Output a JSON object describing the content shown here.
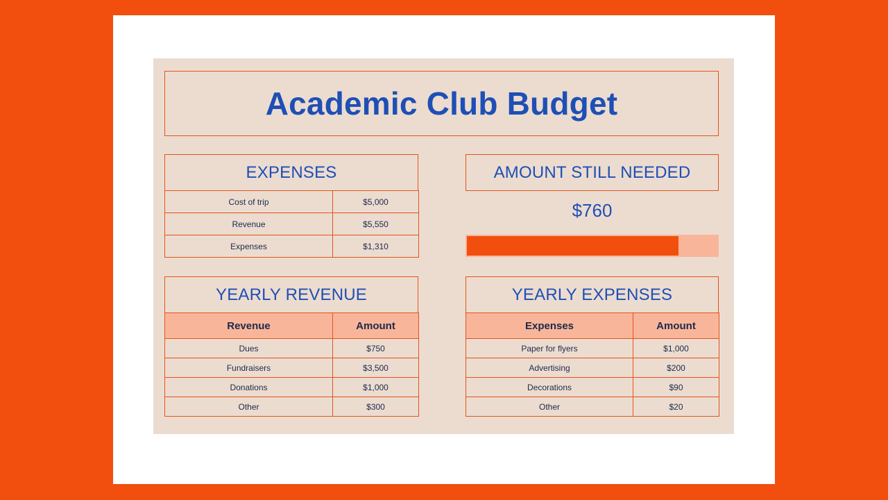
{
  "title": "Academic Club Budget",
  "expenses_summary": {
    "heading": "EXPENSES",
    "rows": [
      {
        "label": "Cost of trip",
        "value": "$5,000"
      },
      {
        "label": "Revenue",
        "value": "$5,550"
      },
      {
        "label": "Expenses",
        "value": "$1,310"
      }
    ]
  },
  "amount_needed": {
    "heading": "AMOUNT STILL NEEDED",
    "value": "$760",
    "progress_fraction": 0.845
  },
  "yearly_revenue": {
    "heading": "YEARLY REVENUE",
    "columns": [
      "Revenue",
      "Amount"
    ],
    "rows": [
      {
        "label": "Dues",
        "value": "$750"
      },
      {
        "label": "Fundraisers",
        "value": "$3,500"
      },
      {
        "label": "Donations",
        "value": "$1,000"
      },
      {
        "label": "Other",
        "value": "$300"
      }
    ]
  },
  "yearly_expenses": {
    "heading": "YEARLY EXPENSES",
    "columns": [
      "Expenses",
      "Amount"
    ],
    "rows": [
      {
        "label": "Paper for flyers",
        "value": "$1,000"
      },
      {
        "label": "Advertising",
        "value": "$200"
      },
      {
        "label": "Decorations",
        "value": "$90"
      },
      {
        "label": "Other",
        "value": "$20"
      }
    ]
  },
  "colors": {
    "accent_orange": "#F24E0E",
    "title_blue": "#1E4FB5",
    "sheet_beige": "#ECDCD0",
    "header_peach": "#F9B59A"
  }
}
